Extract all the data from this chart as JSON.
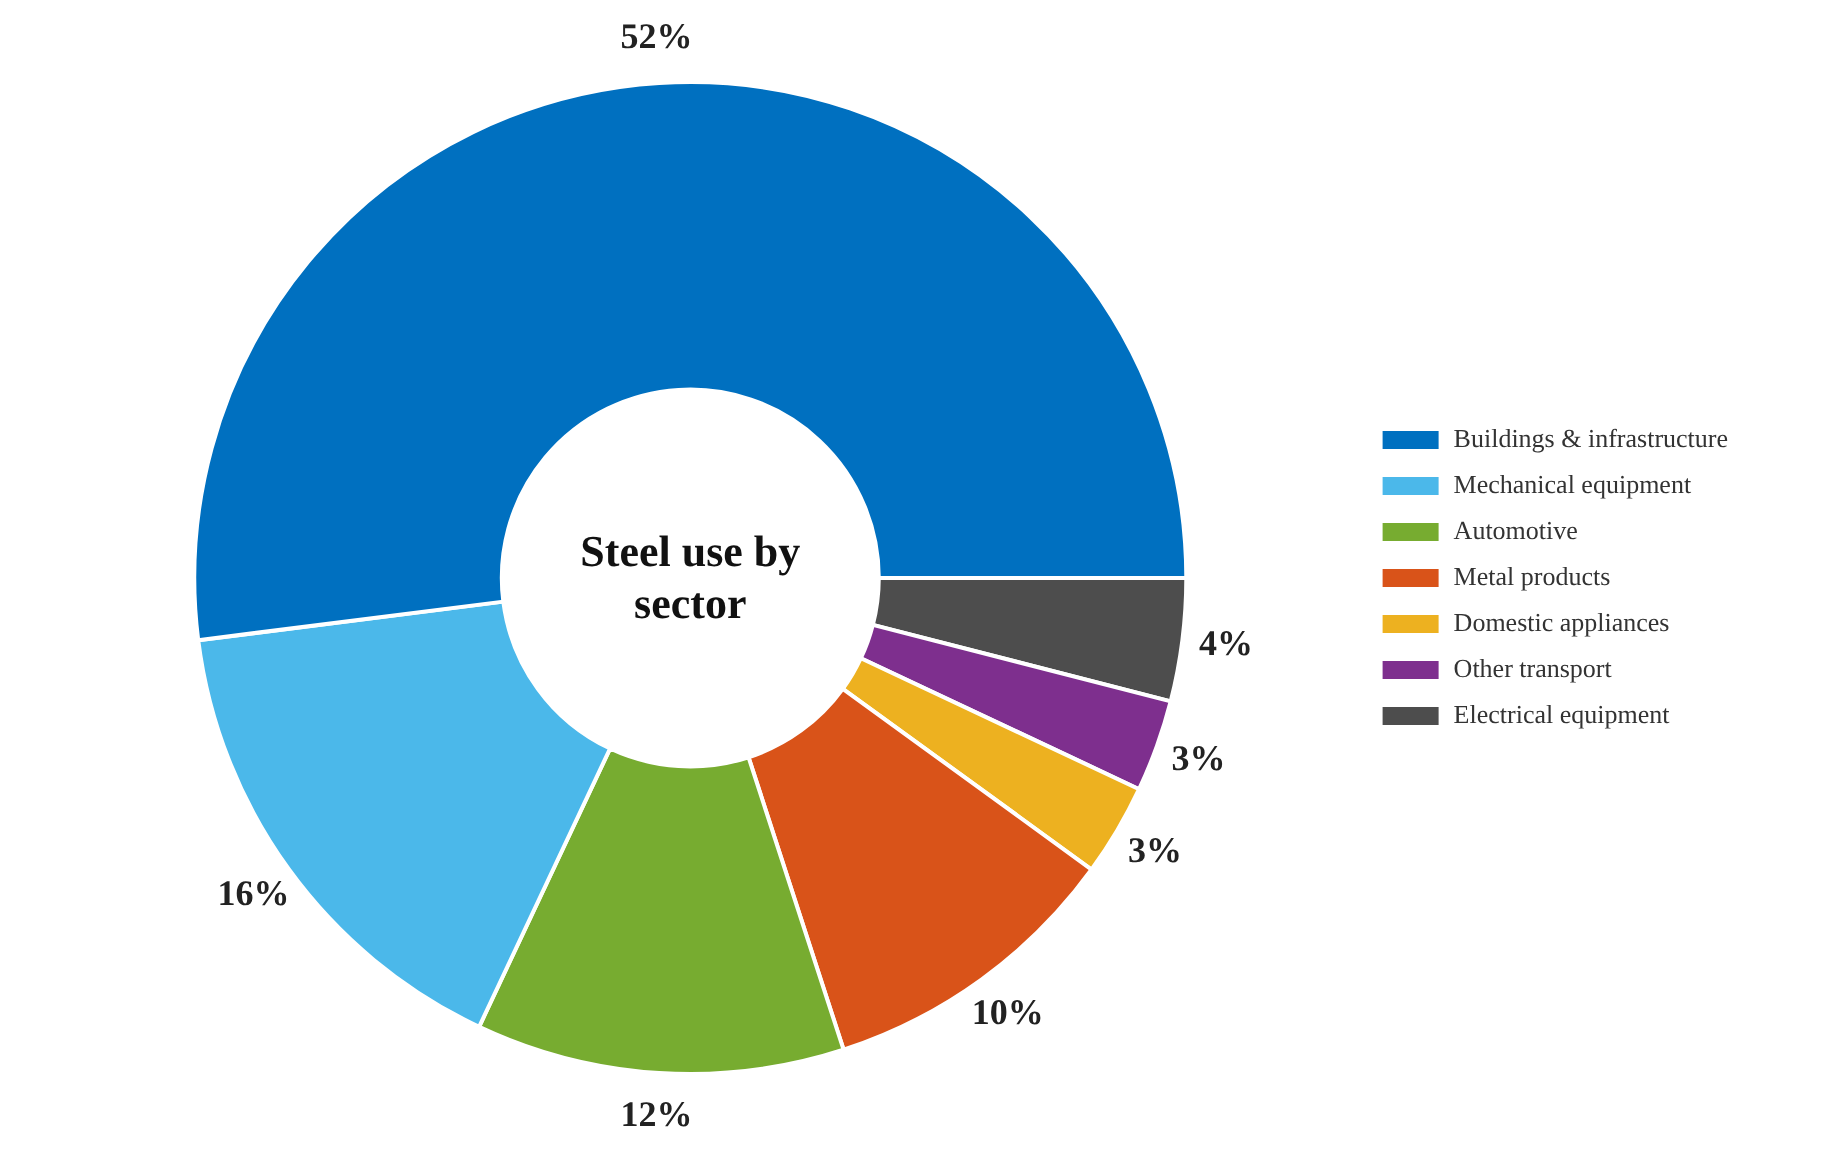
{
  "chart_data": {
    "type": "donut",
    "title": "Steel use by sector",
    "categories": [
      "Buildings & infrastructure",
      "Mechanical equipment",
      "Automotive",
      "Metal products",
      "Domestic appliances",
      "Other transport",
      "Electrical equipment"
    ],
    "values": [
      52,
      16,
      12,
      10,
      3,
      3,
      4
    ],
    "value_labels": [
      "52%",
      "16%",
      "12%",
      "10%",
      "3%",
      "3%",
      "4%"
    ],
    "colors": [
      "#0070c0",
      "#4bb8ea",
      "#77ac30",
      "#d95319",
      "#edb120",
      "#7e2f8e",
      "#4d4d4d"
    ],
    "legend": "right"
  }
}
